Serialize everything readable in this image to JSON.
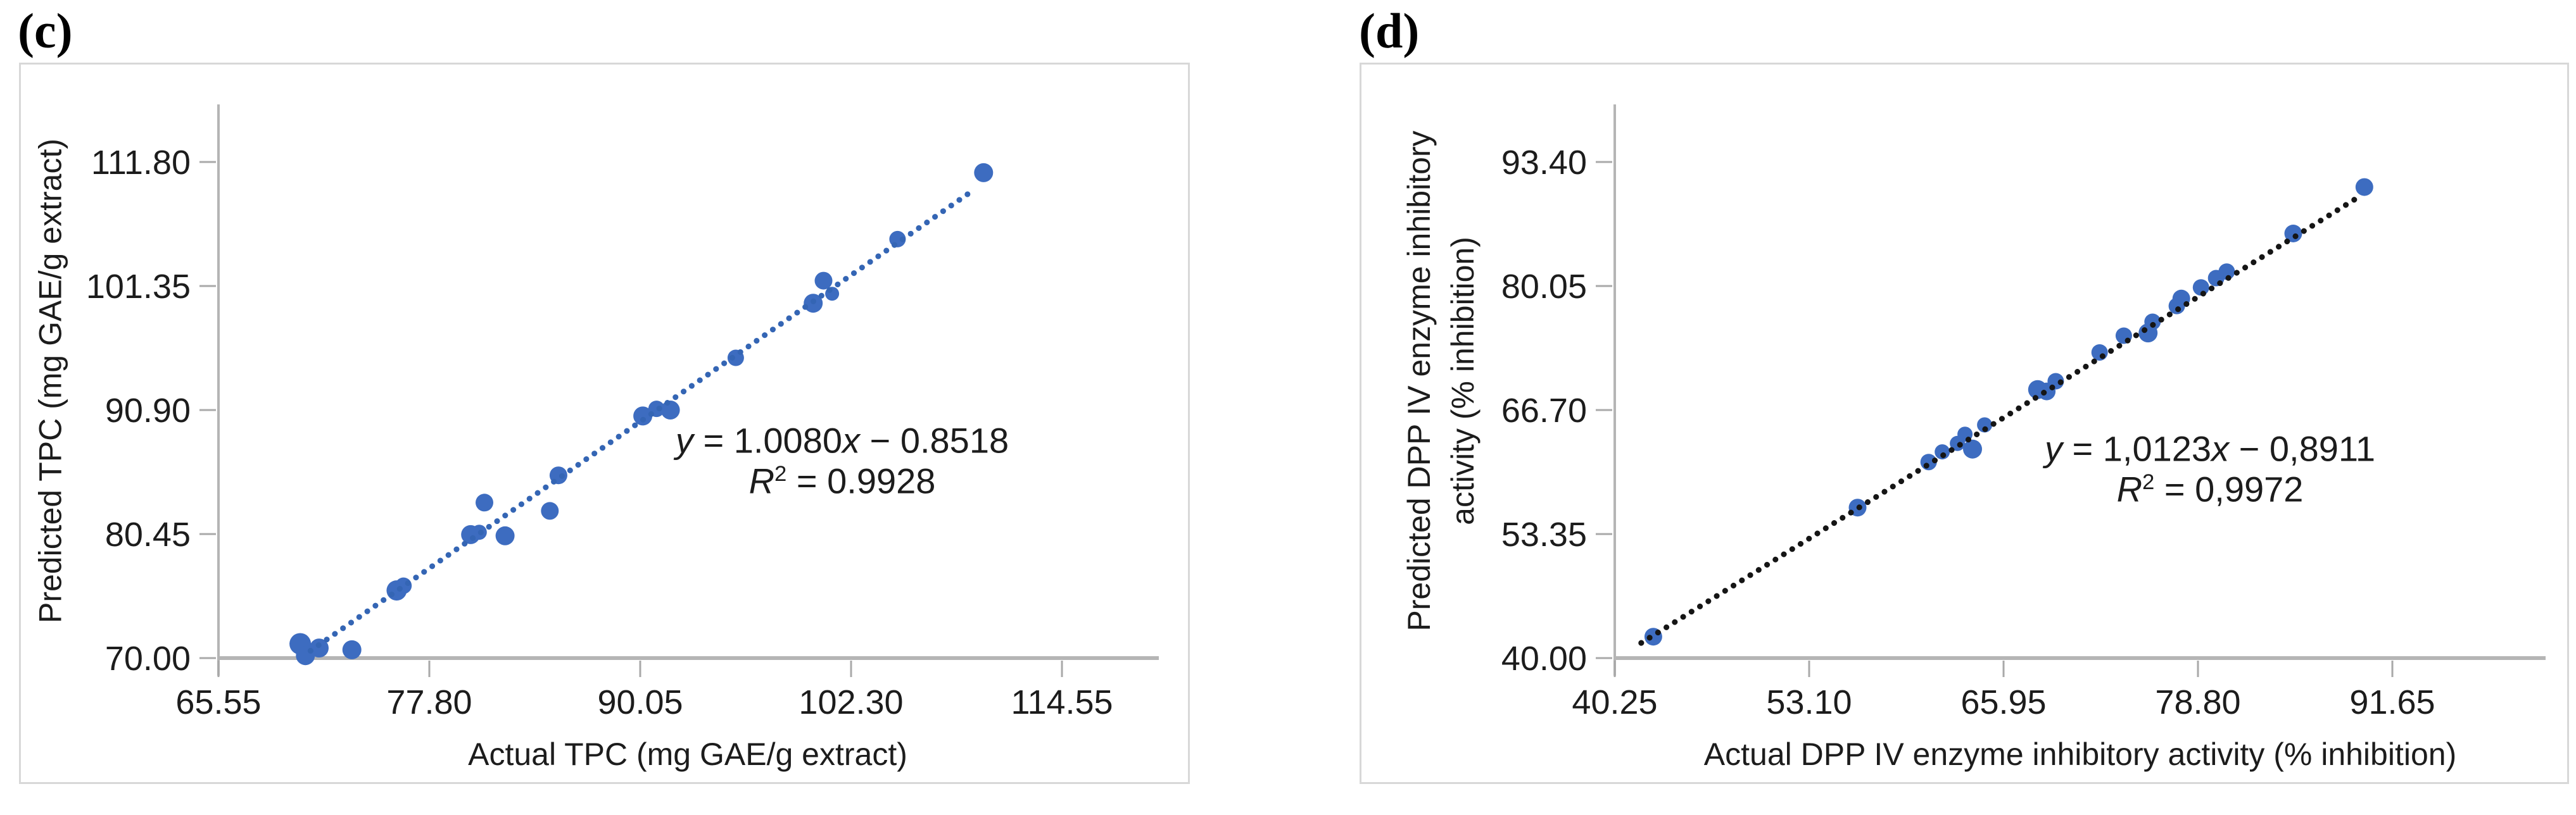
{
  "figure": {
    "panels": [
      {
        "panel_label": "(c)",
        "equation": {
          "y_var": "y",
          "slope_part": " = 1.0080",
          "x_var": "x",
          "intercept_part": " − 0.8518",
          "r_var": "R",
          "r_sup": "2",
          "r_value": " = 0.9928"
        }
      },
      {
        "panel_label": "(d)",
        "equation": {
          "y_var": "y",
          "slope_part": " = 1,0123",
          "x_var": "x",
          "intercept_part": " − 0,8911",
          "r_var": "R",
          "r_sup": "2",
          "r_value": " = 0,9972"
        }
      }
    ]
  },
  "chart_data": [
    {
      "type": "scatter",
      "title": "",
      "xlabel": "Actual TPC (mg GAE/g extract)",
      "ylabel": "Predicted TPC (mg GAE/g extract)",
      "x_ticks": [
        65.55,
        77.8,
        90.05,
        102.3,
        114.55
      ],
      "x_tick_labels": [
        "65.55",
        "77.80",
        "90.05",
        "102.30",
        "114.55"
      ],
      "y_ticks": [
        70.0,
        80.45,
        90.9,
        101.35,
        111.8
      ],
      "y_tick_labels": [
        "70.00",
        "80.45",
        "90.90",
        "101.35",
        "111.80"
      ],
      "xlim": [
        65.55,
        120.2
      ],
      "ylim": [
        70.0,
        116.6
      ],
      "grid": false,
      "legend": "none",
      "marker_color": "#3d6cc0",
      "points": [
        [
          70.3,
          71.2,
          17
        ],
        [
          70.6,
          70.2,
          15
        ],
        [
          71.4,
          70.85,
          15
        ],
        [
          73.3,
          70.7,
          15
        ],
        [
          75.9,
          75.7,
          16
        ],
        [
          76.3,
          76.1,
          13
        ],
        [
          80.2,
          80.4,
          15
        ],
        [
          80.7,
          80.6,
          12
        ],
        [
          81.0,
          83.1,
          14
        ],
        [
          82.2,
          80.3,
          15
        ],
        [
          84.8,
          82.4,
          14
        ],
        [
          85.3,
          85.4,
          14
        ],
        [
          90.2,
          90.4,
          15
        ],
        [
          91.0,
          91.0,
          13
        ],
        [
          91.8,
          90.9,
          15
        ],
        [
          95.6,
          95.3,
          13
        ],
        [
          100.1,
          99.9,
          15
        ],
        [
          100.7,
          101.8,
          14
        ],
        [
          101.2,
          100.7,
          11
        ],
        [
          105.0,
          105.3,
          13
        ],
        [
          110.0,
          110.9,
          15
        ]
      ],
      "trendline": {
        "slope": 1.008,
        "intercept": -0.8518,
        "x_start": 70.9,
        "x_end": 109.3,
        "color": "#3465b4",
        "style": "dotted"
      },
      "equation_text": "y = 1.0080x − 0.8518",
      "r_squared_text": "R² = 0.9928"
    },
    {
      "type": "scatter",
      "title": "",
      "xlabel": "Actual DPP IV enzyme inhibitory activity (% inhibition)",
      "ylabel": "Predicted DPP IV enzyme inhibitory activity (% inhibition)",
      "ylabel_lines": [
        "Predicted DPP IV enzyme inhibitory",
        "activity (% inhibition)"
      ],
      "x_ticks": [
        40.25,
        53.1,
        65.95,
        78.8,
        91.65
      ],
      "x_tick_labels": [
        "40.25",
        "53.10",
        "65.95",
        "78.80",
        "91.65"
      ],
      "y_ticks": [
        40.0,
        53.35,
        66.7,
        80.05,
        93.4
      ],
      "y_tick_labels": [
        "40.00",
        "53.35",
        "66.70",
        "80.05",
        "93.40"
      ],
      "xlim": [
        40.25,
        101.8
      ],
      "ylim": [
        40.0,
        99.6
      ],
      "grid": false,
      "legend": "none",
      "marker_color": "#3d6cc0",
      "points": [
        [
          42.8,
          42.3,
          14
        ],
        [
          56.3,
          56.2,
          14
        ],
        [
          61.0,
          61.1,
          13
        ],
        [
          61.9,
          62.2,
          12
        ],
        [
          62.9,
          63.1,
          12
        ],
        [
          63.4,
          64.1,
          12
        ],
        [
          63.9,
          62.5,
          15
        ],
        [
          64.7,
          65.1,
          12
        ],
        [
          68.2,
          68.9,
          15
        ],
        [
          68.8,
          68.7,
          14
        ],
        [
          69.4,
          69.8,
          13
        ],
        [
          72.3,
          72.9,
          13
        ],
        [
          73.9,
          74.7,
          13
        ],
        [
          75.5,
          75.0,
          15
        ],
        [
          75.8,
          76.2,
          13
        ],
        [
          77.4,
          77.9,
          13
        ],
        [
          77.7,
          78.7,
          14
        ],
        [
          79.0,
          79.9,
          13
        ],
        [
          80.0,
          80.9,
          13
        ],
        [
          80.7,
          81.6,
          13
        ],
        [
          85.1,
          85.7,
          14
        ],
        [
          89.8,
          90.7,
          14
        ]
      ],
      "trendline": {
        "slope": 1.0123,
        "intercept": -0.8911,
        "x_start": 42.0,
        "x_end": 89.2,
        "color": "#151515",
        "style": "dotted"
      },
      "equation_text": "y = 1,0123x − 0,8911",
      "r_squared_text": "R² = 0,9972"
    }
  ]
}
